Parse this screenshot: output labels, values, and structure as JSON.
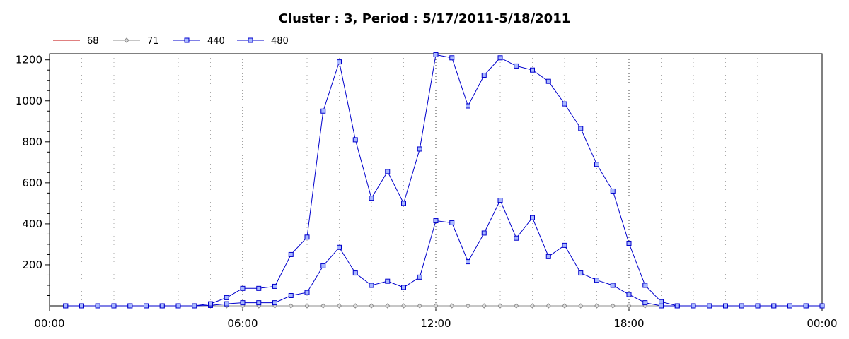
{
  "chart_data": {
    "type": "line",
    "title": "Cluster : 3, Period : 5/17/2011-5/18/2011",
    "xlabel": "",
    "ylabel": "",
    "xlim": [
      0,
      24
    ],
    "ylim": [
      0,
      1230
    ],
    "x_ticks": [
      {
        "value": 0,
        "label": "00:00"
      },
      {
        "value": 6,
        "label": "06:00"
      },
      {
        "value": 12,
        "label": "12:00"
      },
      {
        "value": 18,
        "label": "18:00"
      },
      {
        "value": 24,
        "label": "00:00"
      }
    ],
    "y_ticks": [
      200,
      400,
      600,
      800,
      1000,
      1200
    ],
    "grid": "vertical-dotted",
    "legend_position": "top-left",
    "x": [
      0.5,
      1,
      1.5,
      2,
      2.5,
      3,
      3.5,
      4,
      4.5,
      5,
      5.5,
      6,
      6.5,
      7,
      7.5,
      8,
      8.5,
      9,
      9.5,
      10,
      10.5,
      11,
      11.5,
      12,
      12.5,
      13,
      13.5,
      14,
      14.5,
      15,
      15.5,
      16,
      16.5,
      17,
      17.5,
      18,
      18.5,
      19,
      19.5,
      20,
      20.5,
      21,
      21.5,
      22,
      22.5,
      23,
      23.5,
      24
    ],
    "series": [
      {
        "name": "68",
        "color": "#c00000",
        "marker": "none",
        "values": [
          0,
          0,
          0,
          0,
          0,
          0,
          0,
          0,
          0,
          0,
          0,
          0,
          0,
          0,
          0,
          0,
          0,
          0,
          0,
          0,
          0,
          0,
          0,
          0,
          0,
          0,
          0,
          0,
          0,
          0,
          0,
          0,
          0,
          0,
          0,
          0,
          0,
          0,
          0,
          0,
          0,
          0,
          0,
          0,
          0,
          0,
          0,
          0
        ]
      },
      {
        "name": "71",
        "color": "#8c8c8c",
        "marker": "diamond",
        "values": [
          0,
          0,
          0,
          0,
          0,
          0,
          0,
          0,
          0,
          0,
          0,
          0,
          0,
          0,
          0,
          0,
          0,
          0,
          0,
          0,
          0,
          0,
          0,
          0,
          0,
          0,
          0,
          0,
          0,
          0,
          0,
          0,
          0,
          0,
          0,
          0,
          0,
          0,
          0,
          0,
          0,
          0,
          0,
          0,
          0,
          0,
          0,
          0
        ]
      },
      {
        "name": "440",
        "color": "#0000cc",
        "marker": "square",
        "values": [
          0,
          0,
          0,
          0,
          0,
          0,
          0,
          0,
          0,
          2,
          10,
          15,
          15,
          15,
          50,
          65,
          195,
          285,
          160,
          100,
          120,
          90,
          140,
          415,
          405,
          215,
          355,
          515,
          330,
          430,
          240,
          295,
          160,
          125,
          100,
          55,
          15,
          0,
          0,
          0,
          0,
          0,
          0,
          0,
          0,
          0,
          0,
          0
        ]
      },
      {
        "name": "480",
        "color": "#0000cc",
        "marker": "square",
        "values": [
          0,
          0,
          0,
          0,
          0,
          0,
          0,
          0,
          0,
          10,
          40,
          85,
          85,
          95,
          250,
          335,
          950,
          1190,
          810,
          525,
          655,
          500,
          765,
          1225,
          1210,
          975,
          1125,
          1210,
          1170,
          1150,
          1095,
          985,
          865,
          690,
          560,
          305,
          100,
          20,
          0,
          0,
          0,
          0,
          0,
          0,
          0,
          0,
          0,
          0
        ]
      }
    ]
  }
}
